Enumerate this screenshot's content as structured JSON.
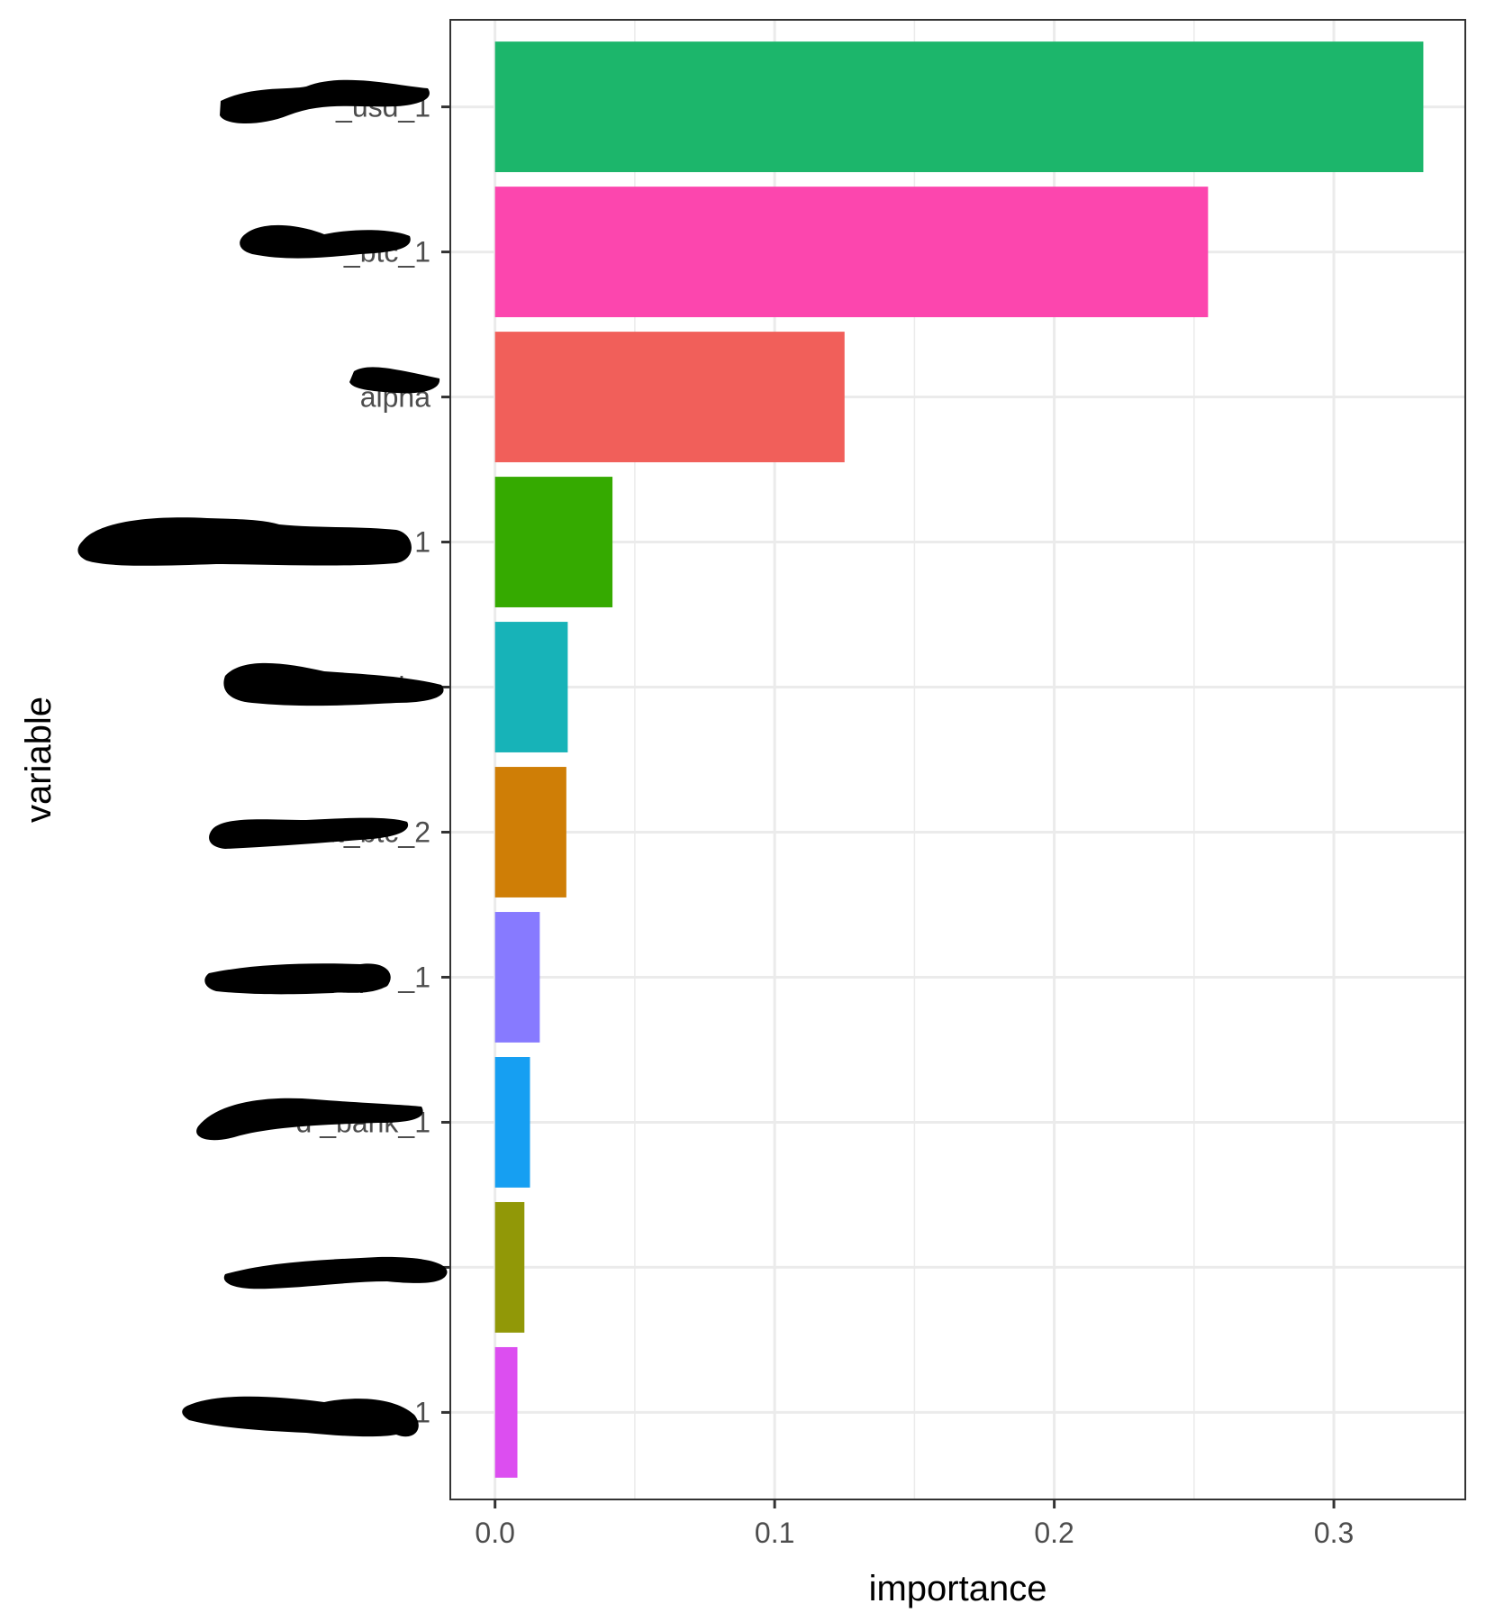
{
  "chart_data": {
    "type": "bar",
    "orientation": "horizontal",
    "title": "",
    "xlabel": "importance",
    "ylabel": "variable",
    "xlim": [
      -0.016,
      0.347
    ],
    "xticks": [
      0.0,
      0.1,
      0.2,
      0.3
    ],
    "xtick_labels": [
      "0.0",
      "0.1",
      "0.2",
      "0.3"
    ],
    "grid": true,
    "legend": "none",
    "categories": [
      {
        "label": "balance_usd_1",
        "visible_text": "_usd_1",
        "redacted": true,
        "value": 0.332,
        "color": "#1cb66b"
      },
      {
        "label": "trades_btc_1",
        "visible_text": "_btc_1",
        "redacted": true,
        "value": 0.255,
        "color": "#fc46ae"
      },
      {
        "label": "alpha",
        "visible_text": "alpha",
        "redacted": true,
        "value": 0.125,
        "color": "#f15f5a"
      },
      {
        "label": "a…1",
        "visible_text": "a 1",
        "redacted": true,
        "value": 0.042,
        "color": "#35aa00"
      },
      {
        "label": "ba…",
        "visible_text": "ba",
        "redacted": true,
        "value": 0.026,
        "color": "#17b3b8"
      },
      {
        "label": "…ount_btc_2",
        "visible_text": "ount_btc_2",
        "redacted": true,
        "value": 0.0255,
        "color": "#cf7e06"
      },
      {
        "label": "pe…_1",
        "visible_text": "pe _1",
        "redacted": true,
        "value": 0.016,
        "color": "#877aff"
      },
      {
        "label": "d…_bank_1",
        "visible_text": "d _bank_1",
        "redacted": true,
        "value": 0.0125,
        "color": "#169ff2"
      },
      {
        "label": "a…",
        "visible_text": "a",
        "redacted": true,
        "value": 0.0105,
        "color": "#919807"
      },
      {
        "label": "reven…1",
        "visible_text": "reven 1",
        "redacted": true,
        "value": 0.008,
        "color": "#dc4ef0"
      }
    ]
  }
}
